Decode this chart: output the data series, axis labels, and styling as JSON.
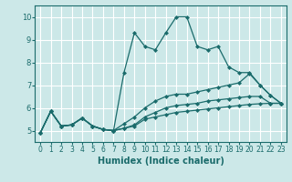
{
  "xlabel": "Humidex (Indice chaleur)",
  "xlim": [
    -0.5,
    23.5
  ],
  "ylim": [
    4.5,
    10.5
  ],
  "xticks": [
    0,
    1,
    2,
    3,
    4,
    5,
    6,
    7,
    8,
    9,
    10,
    11,
    12,
    13,
    14,
    15,
    16,
    17,
    18,
    19,
    20,
    21,
    22,
    23
  ],
  "yticks": [
    5,
    6,
    7,
    8,
    9,
    10
  ],
  "bg_color": "#cce8e8",
  "line_color": "#1a6b6b",
  "grid_color": "#ffffff",
  "lines": [
    {
      "x": [
        0,
        1,
        2,
        3,
        4,
        5,
        6,
        7,
        8,
        9,
        10,
        11,
        12,
        13,
        14,
        15,
        16,
        17,
        18,
        19,
        20,
        21,
        22,
        23
      ],
      "y": [
        4.9,
        5.85,
        5.2,
        5.25,
        5.55,
        5.2,
        5.05,
        5.0,
        5.1,
        5.2,
        5.5,
        5.6,
        5.7,
        5.8,
        5.85,
        5.9,
        5.95,
        6.0,
        6.05,
        6.1,
        6.15,
        6.18,
        6.2,
        6.2
      ]
    },
    {
      "x": [
        0,
        1,
        2,
        3,
        4,
        5,
        6,
        7,
        8,
        9,
        10,
        11,
        12,
        13,
        14,
        15,
        16,
        17,
        18,
        19,
        20,
        21,
        22,
        23
      ],
      "y": [
        4.9,
        5.85,
        5.2,
        5.25,
        5.55,
        5.2,
        5.05,
        5.0,
        5.1,
        5.25,
        5.6,
        5.8,
        6.0,
        6.1,
        6.15,
        6.2,
        6.3,
        6.35,
        6.4,
        6.45,
        6.5,
        6.5,
        6.2,
        6.2
      ]
    },
    {
      "x": [
        0,
        1,
        2,
        3,
        4,
        5,
        6,
        7,
        8,
        9,
        10,
        11,
        12,
        13,
        14,
        15,
        16,
        17,
        18,
        19,
        20,
        21,
        22,
        23
      ],
      "y": [
        4.9,
        5.85,
        5.2,
        5.25,
        5.55,
        5.2,
        5.05,
        5.0,
        5.3,
        5.6,
        6.0,
        6.3,
        6.5,
        6.6,
        6.6,
        6.7,
        6.8,
        6.9,
        7.0,
        7.1,
        7.5,
        7.0,
        6.55,
        6.2
      ]
    },
    {
      "x": [
        0,
        1,
        2,
        3,
        4,
        5,
        6,
        7,
        8,
        9,
        10,
        11,
        12,
        13,
        14,
        15,
        16,
        17,
        18,
        19,
        20,
        21,
        22,
        23
      ],
      "y": [
        4.9,
        5.85,
        5.2,
        5.25,
        5.55,
        5.2,
        5.05,
        5.0,
        7.55,
        9.3,
        8.7,
        8.55,
        9.3,
        10.0,
        10.0,
        8.7,
        8.55,
        8.7,
        7.8,
        7.55,
        7.55,
        7.0,
        6.55,
        6.2
      ]
    }
  ]
}
